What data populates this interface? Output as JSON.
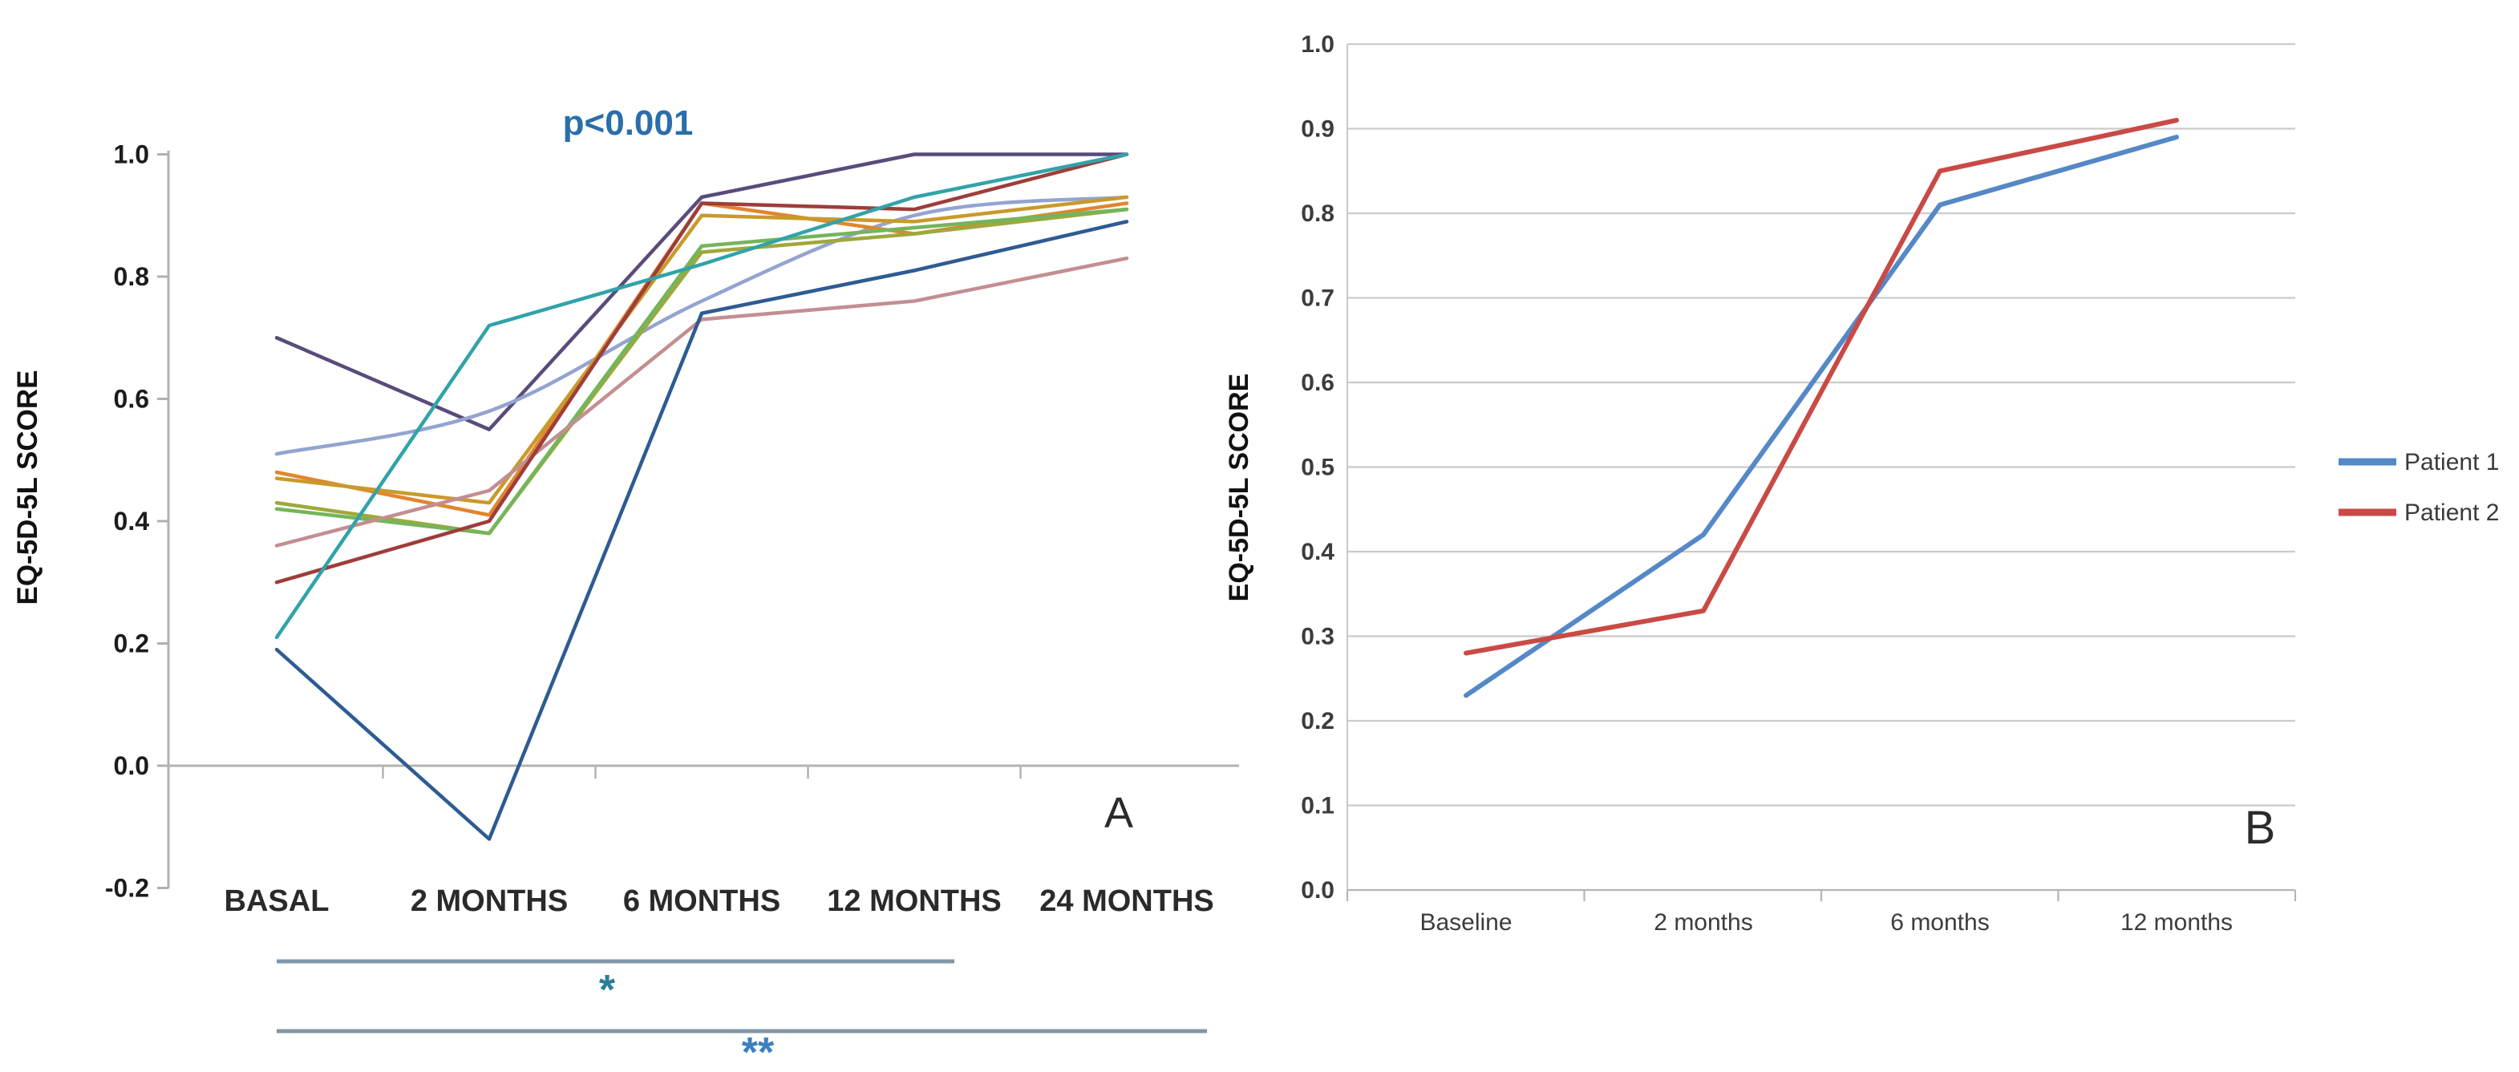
{
  "figure": {
    "background": "#ffffff",
    "panel_a_label": "A",
    "panel_b_label": "B"
  },
  "chart_data": [
    {
      "type": "line",
      "panel_label": "A",
      "annotation": "p<0.001",
      "annotation_color": "#2b6ea9",
      "ylabel": "EQ-5D-5L SCORE",
      "categories": [
        "BASAL",
        "2 MONTHS",
        "6 MONTHS",
        "12 MONTHS",
        "24 MONTHS"
      ],
      "ylim": [
        -0.2,
        1.0
      ],
      "ytick_labels": [
        "1.0",
        "0.8",
        "0.6",
        "0.4",
        "0.2",
        "0.0",
        "-0.2"
      ],
      "grid": false,
      "legend": "none",
      "series": [
        {
          "name": "line-purple",
          "color": "#5a4b7c",
          "values": [
            0.7,
            0.55,
            0.93,
            1.0,
            1.0
          ]
        },
        {
          "name": "line-periwinkle",
          "color": "#93a4d0",
          "values": [
            0.51,
            0.58,
            0.76,
            0.9,
            0.93
          ],
          "smooth": true
        },
        {
          "name": "line-orange",
          "color": "#e0862e",
          "values": [
            0.48,
            0.41,
            0.92,
            0.87,
            0.92
          ]
        },
        {
          "name": "line-gold",
          "color": "#c99a2b",
          "values": [
            0.47,
            0.43,
            0.9,
            0.89,
            0.93
          ]
        },
        {
          "name": "line-olive",
          "color": "#9fa83b",
          "values": [
            0.43,
            0.38,
            0.84,
            0.87,
            0.91
          ]
        },
        {
          "name": "line-green",
          "color": "#74b55c",
          "values": [
            0.42,
            0.38,
            0.85,
            0.88,
            0.91
          ]
        },
        {
          "name": "line-rose",
          "color": "#c38e92",
          "values": [
            0.36,
            0.45,
            0.73,
            0.76,
            0.83
          ]
        },
        {
          "name": "line-crimson",
          "color": "#9e3d3a",
          "values": [
            0.3,
            0.4,
            0.92,
            0.91,
            1.0
          ]
        },
        {
          "name": "line-teal",
          "color": "#31a3a9",
          "values": [
            0.21,
            0.72,
            0.82,
            0.93,
            1.0
          ]
        },
        {
          "name": "line-navy",
          "color": "#2e5b92",
          "values": [
            0.19,
            -0.12,
            0.74,
            0.81,
            0.89
          ]
        }
      ],
      "significance_bars": [
        {
          "label": "*",
          "from": "BASAL",
          "to": "12 MONTHS",
          "star_color": "#2c7d9c"
        },
        {
          "label": "**",
          "from": "BASAL",
          "to": "24 MONTHS",
          "star_color": "#3a7fc2"
        }
      ]
    },
    {
      "type": "line",
      "panel_label": "B",
      "ylabel": "EQ-5D-5L SCORE",
      "categories": [
        "Baseline",
        "2 months",
        "6 months",
        "12 months"
      ],
      "ylim": [
        0.0,
        1.0
      ],
      "ytick_labels": [
        "0.0",
        "0.1",
        "0.2",
        "0.3",
        "0.4",
        "0.5",
        "0.6",
        "0.7",
        "0.8",
        "0.9",
        "1.0"
      ],
      "grid": true,
      "legend": "right",
      "series": [
        {
          "name": "Patient 1",
          "color": "#5588c7",
          "values": [
            0.23,
            0.42,
            0.81,
            0.89
          ]
        },
        {
          "name": "Patient 2",
          "color": "#c94a45",
          "values": [
            0.28,
            0.33,
            0.85,
            0.91
          ]
        }
      ]
    }
  ]
}
